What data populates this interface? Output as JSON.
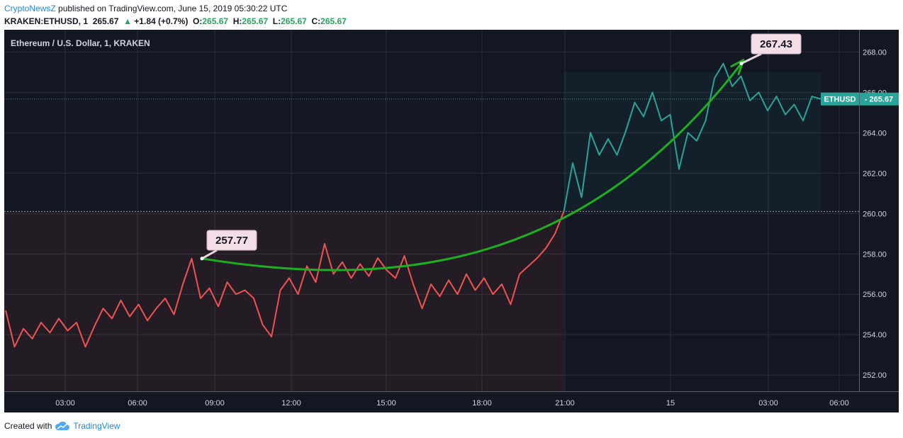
{
  "header": {
    "author": "CryptoNewsZ",
    "published": "published on TradingView.com, June 15, 2019 05:30:22 UTC",
    "symbol": "KRAKEN:ETHUSD, 1",
    "price": "265.67",
    "change": "+1.84 (+0.7%)",
    "o_label": "O:",
    "o": "265.67",
    "h_label": "H:",
    "h": "265.67",
    "l_label": "L:",
    "l": "265.67",
    "c_label": "C:",
    "c": "265.67"
  },
  "footer": {
    "created_with": "Created with",
    "brand": "TradingView"
  },
  "colors": {
    "background": "#131722",
    "grid": "#2a2e39",
    "down": "#ef5350",
    "up": "#26a69a",
    "trend": "#1fae1f",
    "price_badge": "#26a69a"
  },
  "chart_data": {
    "type": "line",
    "title": "Ethereum / U.S. Dollar, 1, KRAKEN",
    "y_ticks": [
      "252.00",
      "254.00",
      "256.00",
      "258.00",
      "260.00",
      "262.00",
      "264.00",
      "266.00",
      "268.00"
    ],
    "ylim": [
      251.2,
      269.1
    ],
    "x_ticks": [
      "03:00",
      "06:00",
      "09:00",
      "12:00",
      "15:00",
      "18:00",
      "21:00",
      "15",
      "03:00",
      "06:00"
    ],
    "reference_price": 260.1,
    "current_symbol": "ETHUSD",
    "current_price": "265.67",
    "current_value": 265.67,
    "annotations": [
      {
        "label": "257.77",
        "value": 257.77,
        "time": "08:35"
      },
      {
        "label": "267.43",
        "value": 267.43,
        "time": "01:30"
      }
    ],
    "series": [
      {
        "values": [
          255.2,
          253.4,
          254.3,
          253.8,
          254.6,
          254.1,
          254.8,
          254.2,
          254.6,
          253.4,
          254.4,
          255.3,
          254.8,
          255.7,
          254.9,
          255.5,
          254.7,
          255.3,
          255.8,
          255.0,
          256.5,
          257.77,
          255.8,
          256.3,
          255.4,
          256.6,
          256.0,
          256.2,
          255.8,
          254.5,
          253.9,
          256.2,
          256.8,
          256.0,
          257.4,
          256.6,
          258.5,
          257.0,
          257.6,
          256.8,
          257.5,
          256.9,
          257.8,
          257.2,
          256.8,
          257.9,
          256.5,
          255.3,
          256.5,
          255.9,
          256.7,
          256.0,
          257.0,
          256.2,
          256.8,
          256.0,
          256.5,
          255.5,
          257.0,
          257.4,
          257.8,
          258.3,
          259.0,
          260.1,
          262.5,
          260.8,
          264.0,
          262.9,
          263.7,
          262.9,
          264.1,
          265.5,
          264.8,
          266.0,
          264.6,
          264.9,
          262.2,
          264.0,
          263.6,
          264.6,
          266.7,
          267.43,
          266.3,
          266.8,
          265.6,
          266.0,
          265.1,
          265.8,
          264.9,
          265.4,
          264.6,
          265.8,
          265.67
        ],
        "up_from_index": 63
      }
    ]
  }
}
